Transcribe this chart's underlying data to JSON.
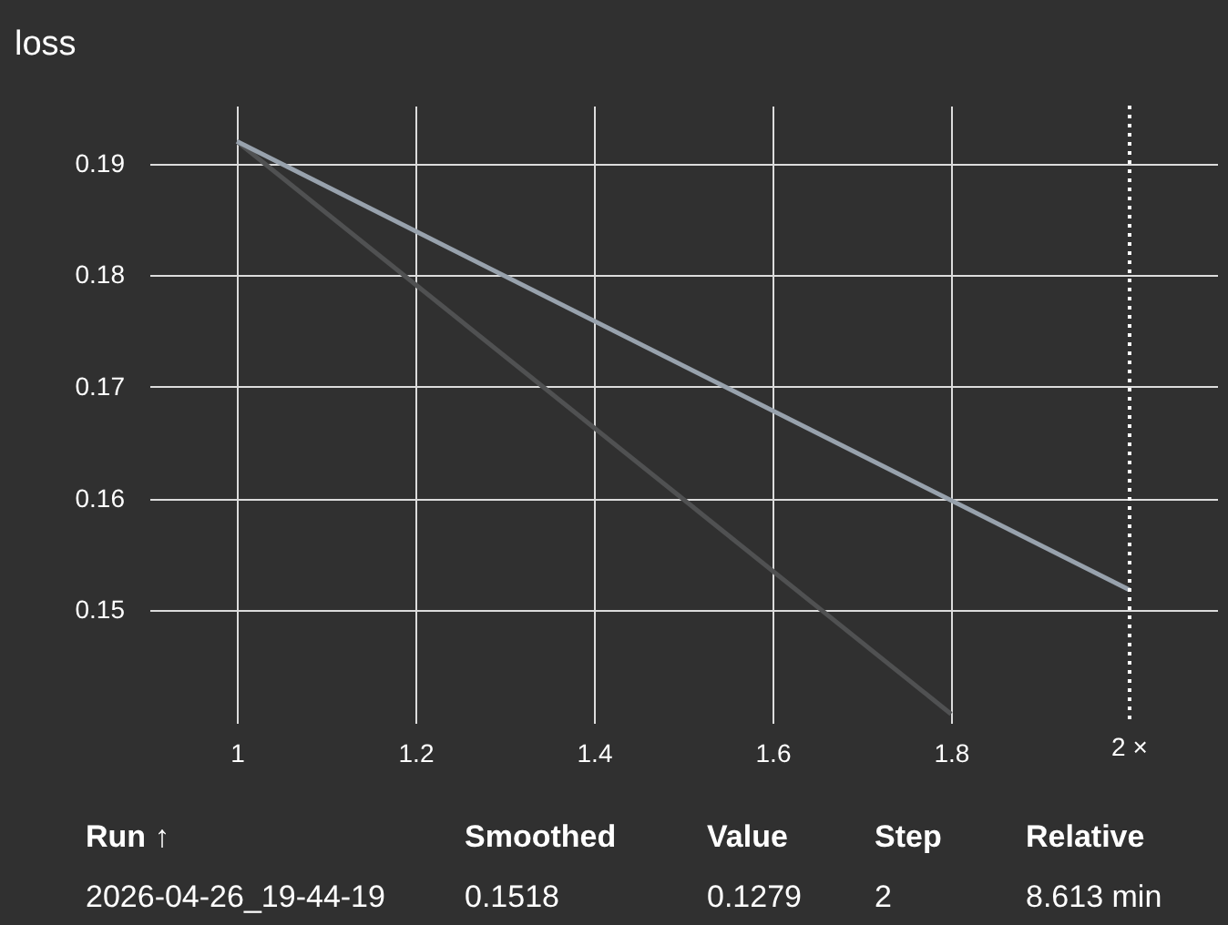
{
  "chart_data": {
    "type": "line",
    "title": "loss",
    "series": [
      {
        "color": "#505152",
        "x": [
          1,
          1.8
        ],
        "values": [
          0.192,
          0.1407
        ]
      },
      {
        "color": "#98a2ad",
        "x": [
          1,
          2
        ],
        "values": [
          0.192,
          0.1518
        ]
      }
    ],
    "xlim": [
      0.902,
      2.098
    ],
    "xticks": [
      1,
      1.2,
      1.4,
      1.6,
      1.8
    ],
    "ylim": [
      0.1399,
      0.1952
    ],
    "yticks": [
      0.15,
      0.16,
      0.17,
      0.18,
      0.19
    ],
    "grid": true,
    "marker": "none",
    "line_style": "solid",
    "ref_lines": [
      {
        "axis": "x",
        "value": 2,
        "label": "2 ×",
        "color": "#ffffff",
        "line_style": "dotted"
      }
    ],
    "annotations": [
      "Run ↑",
      "Smoothed",
      "Value",
      "Step",
      "Relative",
      "2026-04-26_19-44-19",
      "0.1518",
      "0.1279",
      "2",
      "8.613 min"
    ]
  }
}
